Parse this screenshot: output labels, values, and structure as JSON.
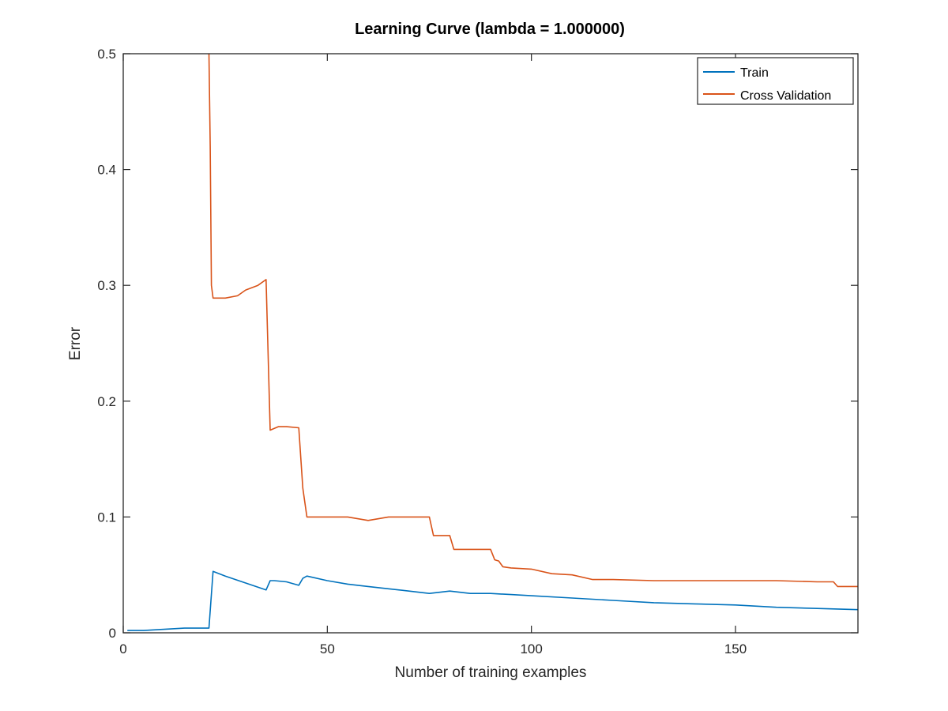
{
  "chart_data": {
    "type": "line",
    "title": "Learning Curve (lambda = 1.000000)",
    "xlabel": "Number of training examples",
    "ylabel": "Error",
    "xlim": [
      0,
      180
    ],
    "ylim": [
      0,
      0.5
    ],
    "xticks": [
      0,
      50,
      100,
      150
    ],
    "xtick_labels": [
      "0",
      "50",
      "100",
      "150"
    ],
    "yticks": [
      0,
      0.1,
      0.2,
      0.3,
      0.4,
      0.5
    ],
    "ytick_labels": [
      "0",
      "0.1",
      "0.2",
      "0.3",
      "0.4",
      "0.5"
    ],
    "grid": false,
    "legend_position": "top-right",
    "series": [
      {
        "name": "Train",
        "color": "#0072BD",
        "x": [
          1,
          5,
          10,
          15,
          20,
          21,
          22,
          25,
          30,
          35,
          36,
          37,
          40,
          43,
          44,
          45,
          50,
          55,
          60,
          65,
          70,
          75,
          80,
          85,
          90,
          95,
          100,
          110,
          120,
          130,
          140,
          150,
          160,
          170,
          180
        ],
        "y": [
          0.002,
          0.002,
          0.003,
          0.004,
          0.004,
          0.004,
          0.053,
          0.049,
          0.043,
          0.037,
          0.045,
          0.045,
          0.044,
          0.041,
          0.047,
          0.049,
          0.045,
          0.042,
          0.04,
          0.038,
          0.036,
          0.034,
          0.036,
          0.034,
          0.034,
          0.033,
          0.032,
          0.03,
          0.028,
          0.026,
          0.025,
          0.024,
          0.022,
          0.021,
          0.02
        ]
      },
      {
        "name": "Cross Validation",
        "color": "#D95319",
        "x": [
          21,
          21.3,
          21.6,
          22,
          25,
          28,
          30,
          33,
          35,
          36,
          38,
          40,
          43,
          44,
          45,
          50,
          55,
          60,
          65,
          70,
          74,
          75,
          76,
          80,
          81,
          85,
          90,
          91,
          92,
          93,
          95,
          100,
          105,
          110,
          115,
          120,
          130,
          140,
          150,
          160,
          170,
          174,
          175,
          180
        ],
        "y": [
          0.5,
          0.42,
          0.3,
          0.289,
          0.289,
          0.291,
          0.296,
          0.3,
          0.305,
          0.175,
          0.178,
          0.178,
          0.177,
          0.125,
          0.1,
          0.1,
          0.1,
          0.097,
          0.1,
          0.1,
          0.1,
          0.1,
          0.084,
          0.084,
          0.072,
          0.072,
          0.072,
          0.063,
          0.062,
          0.057,
          0.056,
          0.055,
          0.051,
          0.05,
          0.046,
          0.046,
          0.045,
          0.045,
          0.045,
          0.045,
          0.044,
          0.044,
          0.04,
          0.04
        ]
      }
    ]
  }
}
